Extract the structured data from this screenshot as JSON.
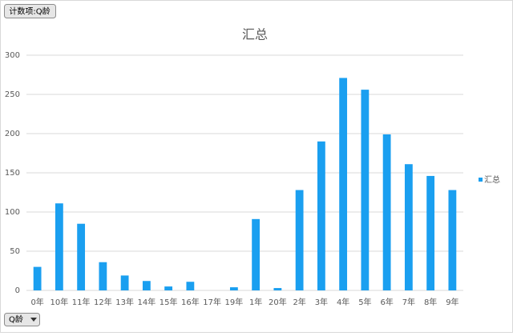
{
  "chart_data": {
    "type": "bar",
    "title": "汇总",
    "value_field_button": "计数项:Q龄",
    "axis_field_button": "Q龄",
    "categories": [
      "0年",
      "10年",
      "11年",
      "12年",
      "13年",
      "14年",
      "15年",
      "16年",
      "17年",
      "19年",
      "1年",
      "20年",
      "2年",
      "3年",
      "4年",
      "5年",
      "6年",
      "7年",
      "8年",
      "9年"
    ],
    "series": [
      {
        "name": "汇总",
        "color": "#1a9ff0",
        "values": [
          30,
          111,
          85,
          36,
          19,
          12,
          5,
          11,
          0,
          4,
          91,
          3,
          128,
          190,
          271,
          256,
          199,
          161,
          146,
          128
        ]
      }
    ],
    "ylim": [
      0,
      300
    ],
    "yticks": [
      0,
      50,
      100,
      150,
      200,
      250,
      300
    ],
    "grid": true,
    "legend": "right"
  }
}
